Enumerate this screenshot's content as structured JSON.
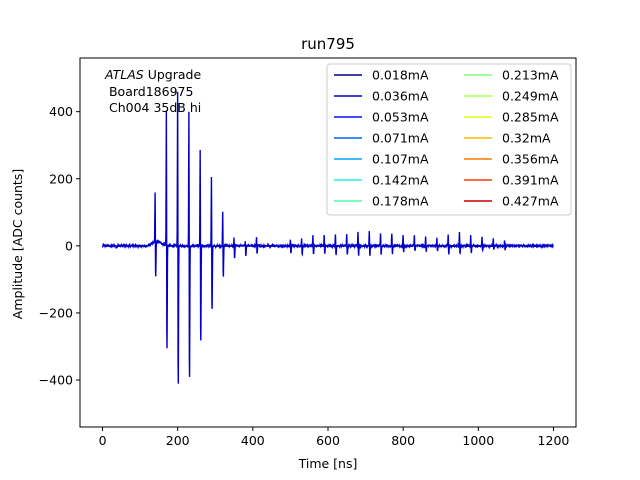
{
  "chart_data": {
    "type": "line",
    "title": "run795",
    "xlabel": "Time [ns]",
    "ylabel": "Amplitude [ADC counts]",
    "xlim": [
      -60,
      1260
    ],
    "ylim": [
      -540,
      560
    ],
    "xticks": [
      0,
      200,
      400,
      600,
      800,
      1000,
      1200
    ],
    "yticks": [
      -400,
      -200,
      0,
      200,
      400
    ],
    "grid": false,
    "legend_position": "top-right",
    "legend_columns": 2,
    "annotation": {
      "italic": "ATLAS",
      "line1_rest": " Upgrade",
      "line2": " Board186975",
      "line3": " Ch004 35dB hi"
    },
    "series": [
      {
        "name": "0.018mA",
        "color": "#00007f"
      },
      {
        "name": "0.036mA",
        "color": "#0000c8"
      },
      {
        "name": "0.053mA",
        "color": "#0010ff"
      },
      {
        "name": "0.071mA",
        "color": "#0064ff"
      },
      {
        "name": "0.107mA",
        "color": "#00a4ff"
      },
      {
        "name": "0.142mA",
        "color": "#1ff5e1"
      },
      {
        "name": "0.178mA",
        "color": "#4dffaa"
      },
      {
        "name": "0.213mA",
        "color": "#7dff7a"
      },
      {
        "name": "0.249mA",
        "color": "#aaff4d"
      },
      {
        "name": "0.285mA",
        "color": "#e1ff16"
      },
      {
        "name": "0.32mA",
        "color": "#ffb900"
      },
      {
        "name": "0.356mA",
        "color": "#ff7a00"
      },
      {
        "name": "0.391mA",
        "color": "#ff3b00"
      },
      {
        "name": "0.427mA",
        "color": "#c80000"
      }
    ],
    "visible_trace_color": "#0000c8",
    "pulses": [
      {
        "t": 140,
        "peak": 170,
        "trough": -135
      },
      {
        "t": 170,
        "peak": 460,
        "trough": -395
      },
      {
        "t": 200,
        "peak": 530,
        "trough": -525
      },
      {
        "t": 230,
        "peak": 460,
        "trough": -500
      },
      {
        "t": 260,
        "peak": 330,
        "trough": -365
      },
      {
        "t": 290,
        "peak": 235,
        "trough": -245
      },
      {
        "t": 320,
        "peak": 115,
        "trough": -115
      },
      {
        "t": 350,
        "peak": 30,
        "trough": -50
      },
      {
        "t": 380,
        "peak": 15,
        "trough": -35
      },
      {
        "t": 410,
        "peak": 30,
        "trough": -30
      },
      {
        "t": 500,
        "peak": 20,
        "trough": -25
      },
      {
        "t": 530,
        "peak": 25,
        "trough": -30
      },
      {
        "t": 560,
        "peak": 35,
        "trough": -35
      },
      {
        "t": 590,
        "peak": 35,
        "trough": -30
      },
      {
        "t": 620,
        "peak": 40,
        "trough": -35
      },
      {
        "t": 650,
        "peak": 40,
        "trough": -35
      },
      {
        "t": 680,
        "peak": 50,
        "trough": -35
      },
      {
        "t": 710,
        "peak": 50,
        "trough": -35
      },
      {
        "t": 740,
        "peak": 45,
        "trough": -30
      },
      {
        "t": 770,
        "peak": 45,
        "trough": -30
      },
      {
        "t": 800,
        "peak": 40,
        "trough": -25
      },
      {
        "t": 830,
        "peak": 35,
        "trough": -20
      },
      {
        "t": 860,
        "peak": 30,
        "trough": -20
      },
      {
        "t": 890,
        "peak": 25,
        "trough": -20
      },
      {
        "t": 920,
        "peak": 40,
        "trough": -30
      },
      {
        "t": 950,
        "peak": 45,
        "trough": -30
      },
      {
        "t": 980,
        "peak": 35,
        "trough": -25
      },
      {
        "t": 1010,
        "peak": 30,
        "trough": -20
      },
      {
        "t": 1040,
        "peak": 25,
        "trough": -15
      },
      {
        "t": 1070,
        "peak": 20,
        "trough": -15
      }
    ]
  }
}
